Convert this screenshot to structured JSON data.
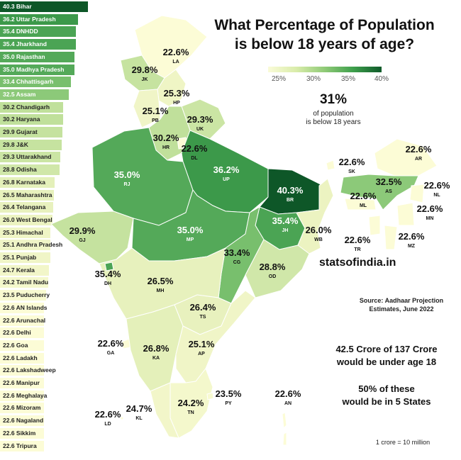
{
  "title": {
    "line1": "What Percentage of Population",
    "line2": "is below 18 years of age?"
  },
  "legend": {
    "ticks": [
      "25%",
      "30%",
      "35%",
      "40%"
    ]
  },
  "summary": {
    "value": "31%",
    "line1": "of population",
    "line2": "is below 18 years"
  },
  "brand": "statsofindia.in",
  "source": {
    "line1": "Source: Aadhaar Projection",
    "line2": "Estimates, June 2022"
  },
  "facts": {
    "f1_line1": "42.5 Crore of 137 Crore",
    "f1_line2": "would be under age 18",
    "f2_line1": "50% of these",
    "f2_line2": "would be in 5 States"
  },
  "note": "1 crore  = 10 million",
  "ranking": [
    {
      "value": "40.3",
      "name": "Bihar"
    },
    {
      "value": "36.2",
      "name": "Uttar Pradesh"
    },
    {
      "value": "35.4",
      "name": "DNHDD"
    },
    {
      "value": "35.4",
      "name": "Jharkhand"
    },
    {
      "value": "35.0",
      "name": "Rajasthan"
    },
    {
      "value": "35.0",
      "name": "Madhya Pradesh"
    },
    {
      "value": "33.4",
      "name": "Chhattisgarh"
    },
    {
      "value": "32.5",
      "name": "Assam"
    },
    {
      "value": "30.2",
      "name": "Chandigarh"
    },
    {
      "value": "30.2",
      "name": "Haryana"
    },
    {
      "value": "29.9",
      "name": "Gujarat"
    },
    {
      "value": "29.8",
      "name": "J&K"
    },
    {
      "value": "29.3",
      "name": "Uttarakhand"
    },
    {
      "value": "28.8",
      "name": "Odisha"
    },
    {
      "value": "26.8",
      "name": "Karnataka"
    },
    {
      "value": "26.5",
      "name": "Maharashtra"
    },
    {
      "value": "26.4",
      "name": "Telangana"
    },
    {
      "value": "26.0",
      "name": "West Bengal"
    },
    {
      "value": "25.3",
      "name": "Himachal"
    },
    {
      "value": "25.1",
      "name": "Andhra Pradesh"
    },
    {
      "value": "25.1",
      "name": "Punjab"
    },
    {
      "value": "24.7",
      "name": "Kerala"
    },
    {
      "value": "24.2",
      "name": "Tamil Nadu"
    },
    {
      "value": "23.5",
      "name": "Puducherry"
    },
    {
      "value": "22.6",
      "name": "AN Islands"
    },
    {
      "value": "22.6",
      "name": "Arunachal"
    },
    {
      "value": "22.6",
      "name": "Delhi"
    },
    {
      "value": "22.6",
      "name": "Goa"
    },
    {
      "value": "22.6",
      "name": "Ladakh"
    },
    {
      "value": "22.6",
      "name": "Lakshadweep"
    },
    {
      "value": "22.6",
      "name": "Manipur"
    },
    {
      "value": "22.6",
      "name": "Meghalaya"
    },
    {
      "value": "22.6",
      "name": "Mizoram"
    },
    {
      "value": "22.6",
      "name": "Nagaland"
    },
    {
      "value": "22.6",
      "name": "Sikkim"
    },
    {
      "value": "22.6",
      "name": "Tripura"
    }
  ],
  "map_labels": [
    {
      "id": "la",
      "pct": "22.6%",
      "abbr": "LA",
      "value": 22.6
    },
    {
      "id": "jk",
      "pct": "29.8%",
      "abbr": "JK",
      "value": 29.8
    },
    {
      "id": "hp",
      "pct": "25.3%",
      "abbr": "HP",
      "value": 25.3
    },
    {
      "id": "pb",
      "pct": "25.1%",
      "abbr": "PB",
      "value": 25.1
    },
    {
      "id": "uk",
      "pct": "29.3%",
      "abbr": "UK",
      "value": 29.3
    },
    {
      "id": "hr",
      "pct": "30.2%",
      "abbr": "HR",
      "value": 30.2
    },
    {
      "id": "dl",
      "pct": "22.6%",
      "abbr": "DL",
      "value": 22.6
    },
    {
      "id": "rj",
      "pct": "35.0%",
      "abbr": "RJ",
      "value": 35.0
    },
    {
      "id": "up",
      "pct": "36.2%",
      "abbr": "UP",
      "value": 36.2
    },
    {
      "id": "br",
      "pct": "40.3%",
      "abbr": "BR",
      "value": 40.3
    },
    {
      "id": "sk",
      "pct": "22.6%",
      "abbr": "SK",
      "value": 22.6
    },
    {
      "id": "ar",
      "pct": "22.6%",
      "abbr": "AR",
      "value": 22.6
    },
    {
      "id": "as",
      "pct": "32.5%",
      "abbr": "AS",
      "value": 32.5
    },
    {
      "id": "nl",
      "pct": "22.6%",
      "abbr": "NL",
      "value": 22.6
    },
    {
      "id": "ml",
      "pct": "22.6%",
      "abbr": "ML",
      "value": 22.6
    },
    {
      "id": "mn",
      "pct": "22.6%",
      "abbr": "MN",
      "value": 22.6
    },
    {
      "id": "gj",
      "pct": "29.9%",
      "abbr": "GJ",
      "value": 29.9
    },
    {
      "id": "mp",
      "pct": "35.0%",
      "abbr": "MP",
      "value": 35.0
    },
    {
      "id": "jh",
      "pct": "35.4%",
      "abbr": "JH",
      "value": 35.4
    },
    {
      "id": "wb",
      "pct": "26.0%",
      "abbr": "WB",
      "value": 26.0
    },
    {
      "id": "tr",
      "pct": "22.6%",
      "abbr": "TR",
      "value": 22.6
    },
    {
      "id": "mz",
      "pct": "22.6%",
      "abbr": "MZ",
      "value": 22.6
    },
    {
      "id": "dh",
      "pct": "35.4%",
      "abbr": "DH",
      "value": 35.4
    },
    {
      "id": "cg",
      "pct": "33.4%",
      "abbr": "CG",
      "value": 33.4
    },
    {
      "id": "od",
      "pct": "28.8%",
      "abbr": "OD",
      "value": 28.8
    },
    {
      "id": "mh",
      "pct": "26.5%",
      "abbr": "MH",
      "value": 26.5
    },
    {
      "id": "ts",
      "pct": "26.4%",
      "abbr": "TS",
      "value": 26.4
    },
    {
      "id": "ga",
      "pct": "22.6%",
      "abbr": "GA",
      "value": 22.6
    },
    {
      "id": "ka",
      "pct": "26.8%",
      "abbr": "KA",
      "value": 26.8
    },
    {
      "id": "ap",
      "pct": "25.1%",
      "abbr": "AP",
      "value": 25.1
    },
    {
      "id": "py",
      "pct": "23.5%",
      "abbr": "PY",
      "value": 23.5
    },
    {
      "id": "an",
      "pct": "22.6%",
      "abbr": "AN",
      "value": 22.6
    },
    {
      "id": "tn",
      "pct": "24.2%",
      "abbr": "TN",
      "value": 24.2
    },
    {
      "id": "kl",
      "pct": "24.7%",
      "abbr": "KL",
      "value": 24.7
    },
    {
      "id": "ld",
      "pct": "22.6%",
      "abbr": "LD",
      "value": 22.6
    }
  ]
}
